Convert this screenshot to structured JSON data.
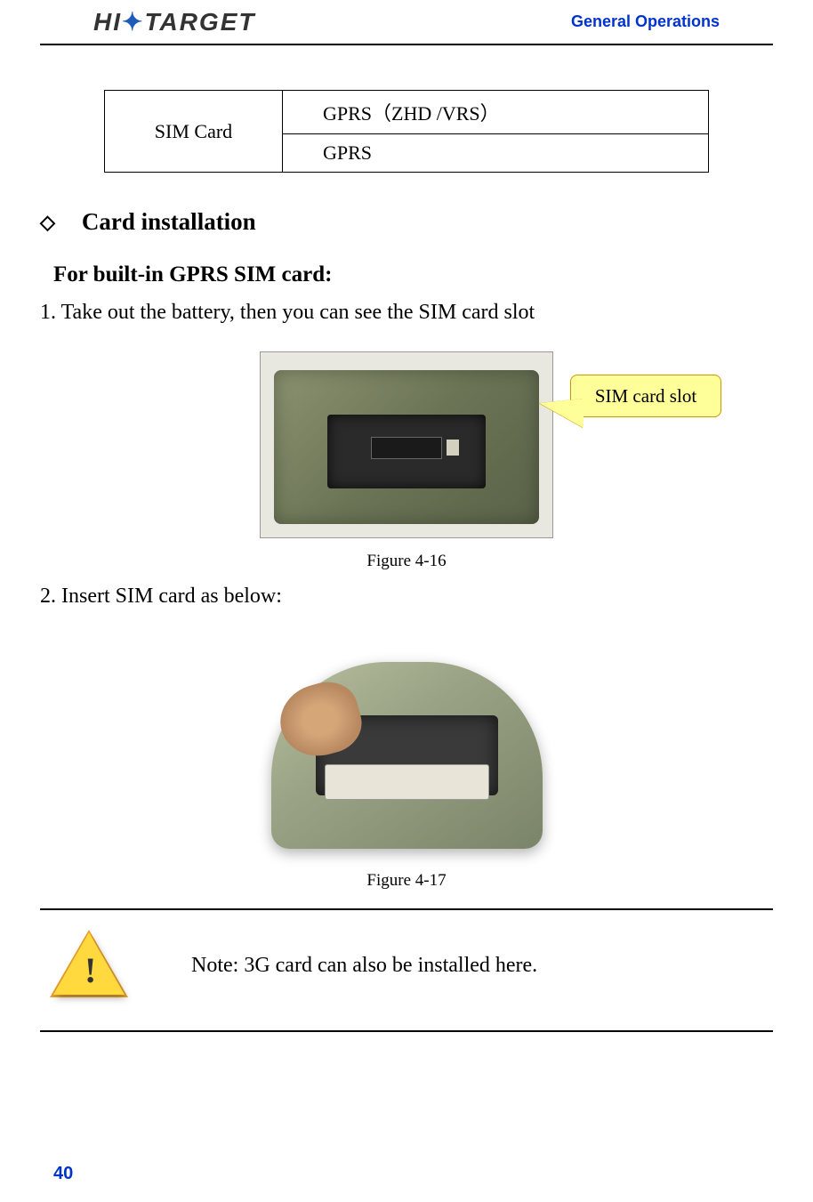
{
  "header": {
    "logo_text_1": "HI",
    "logo_text_2": "TARGET",
    "section_title": "General Operations"
  },
  "sim_table": {
    "label": "SIM Card",
    "row1": "GPRS（ZHD /VRS）",
    "row2": "GPRS"
  },
  "section": {
    "diamond": "◇",
    "heading": "Card installation",
    "sub_heading": "For built-in GPRS SIM card:",
    "step1": "1. Take out the battery, then you can see the SIM card slot",
    "step2": "2. Insert SIM card as below:"
  },
  "figure1": {
    "callout_text": "SIM card slot",
    "caption": "Figure 4-16"
  },
  "figure2": {
    "caption": "Figure 4-17"
  },
  "note": {
    "text": "Note: 3G card can also be installed here."
  },
  "page_number": "40",
  "colors": {
    "header_blue": "#0033cc",
    "callout_bg": "#ffff99",
    "callout_border": "#cc9900",
    "warning_yellow": "#ffd93d",
    "device_green": "#8a9270"
  }
}
